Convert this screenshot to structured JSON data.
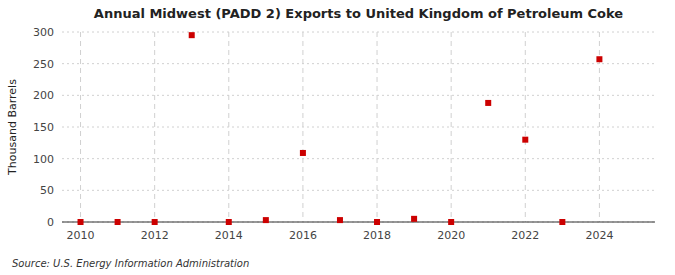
{
  "chart_data": {
    "type": "scatter",
    "title": "Annual Midwest (PADD 2) Exports to United Kingdom of Petroleum Coke",
    "ylabel": "Thousand Barrels",
    "annotations": [
      "Source: U.S. Energy Information Administration"
    ],
    "x": [
      2010,
      2011,
      2012,
      2013,
      2014,
      2015,
      2016,
      2017,
      2018,
      2019,
      2020,
      2021,
      2022,
      2023,
      2024
    ],
    "values": [
      0,
      0,
      0,
      295,
      0,
      3,
      109,
      3,
      0,
      5,
      0,
      188,
      130,
      0,
      257
    ],
    "color": "#cc0000",
    "marker": "square",
    "xlim": [
      2009.5,
      2025.5
    ],
    "ylim": [
      0,
      300
    ],
    "xticks": [
      2010,
      2012,
      2014,
      2016,
      2018,
      2020,
      2022,
      2024
    ],
    "yticks": [
      0,
      50,
      100,
      150,
      200,
      250,
      300
    ],
    "grid": true
  }
}
